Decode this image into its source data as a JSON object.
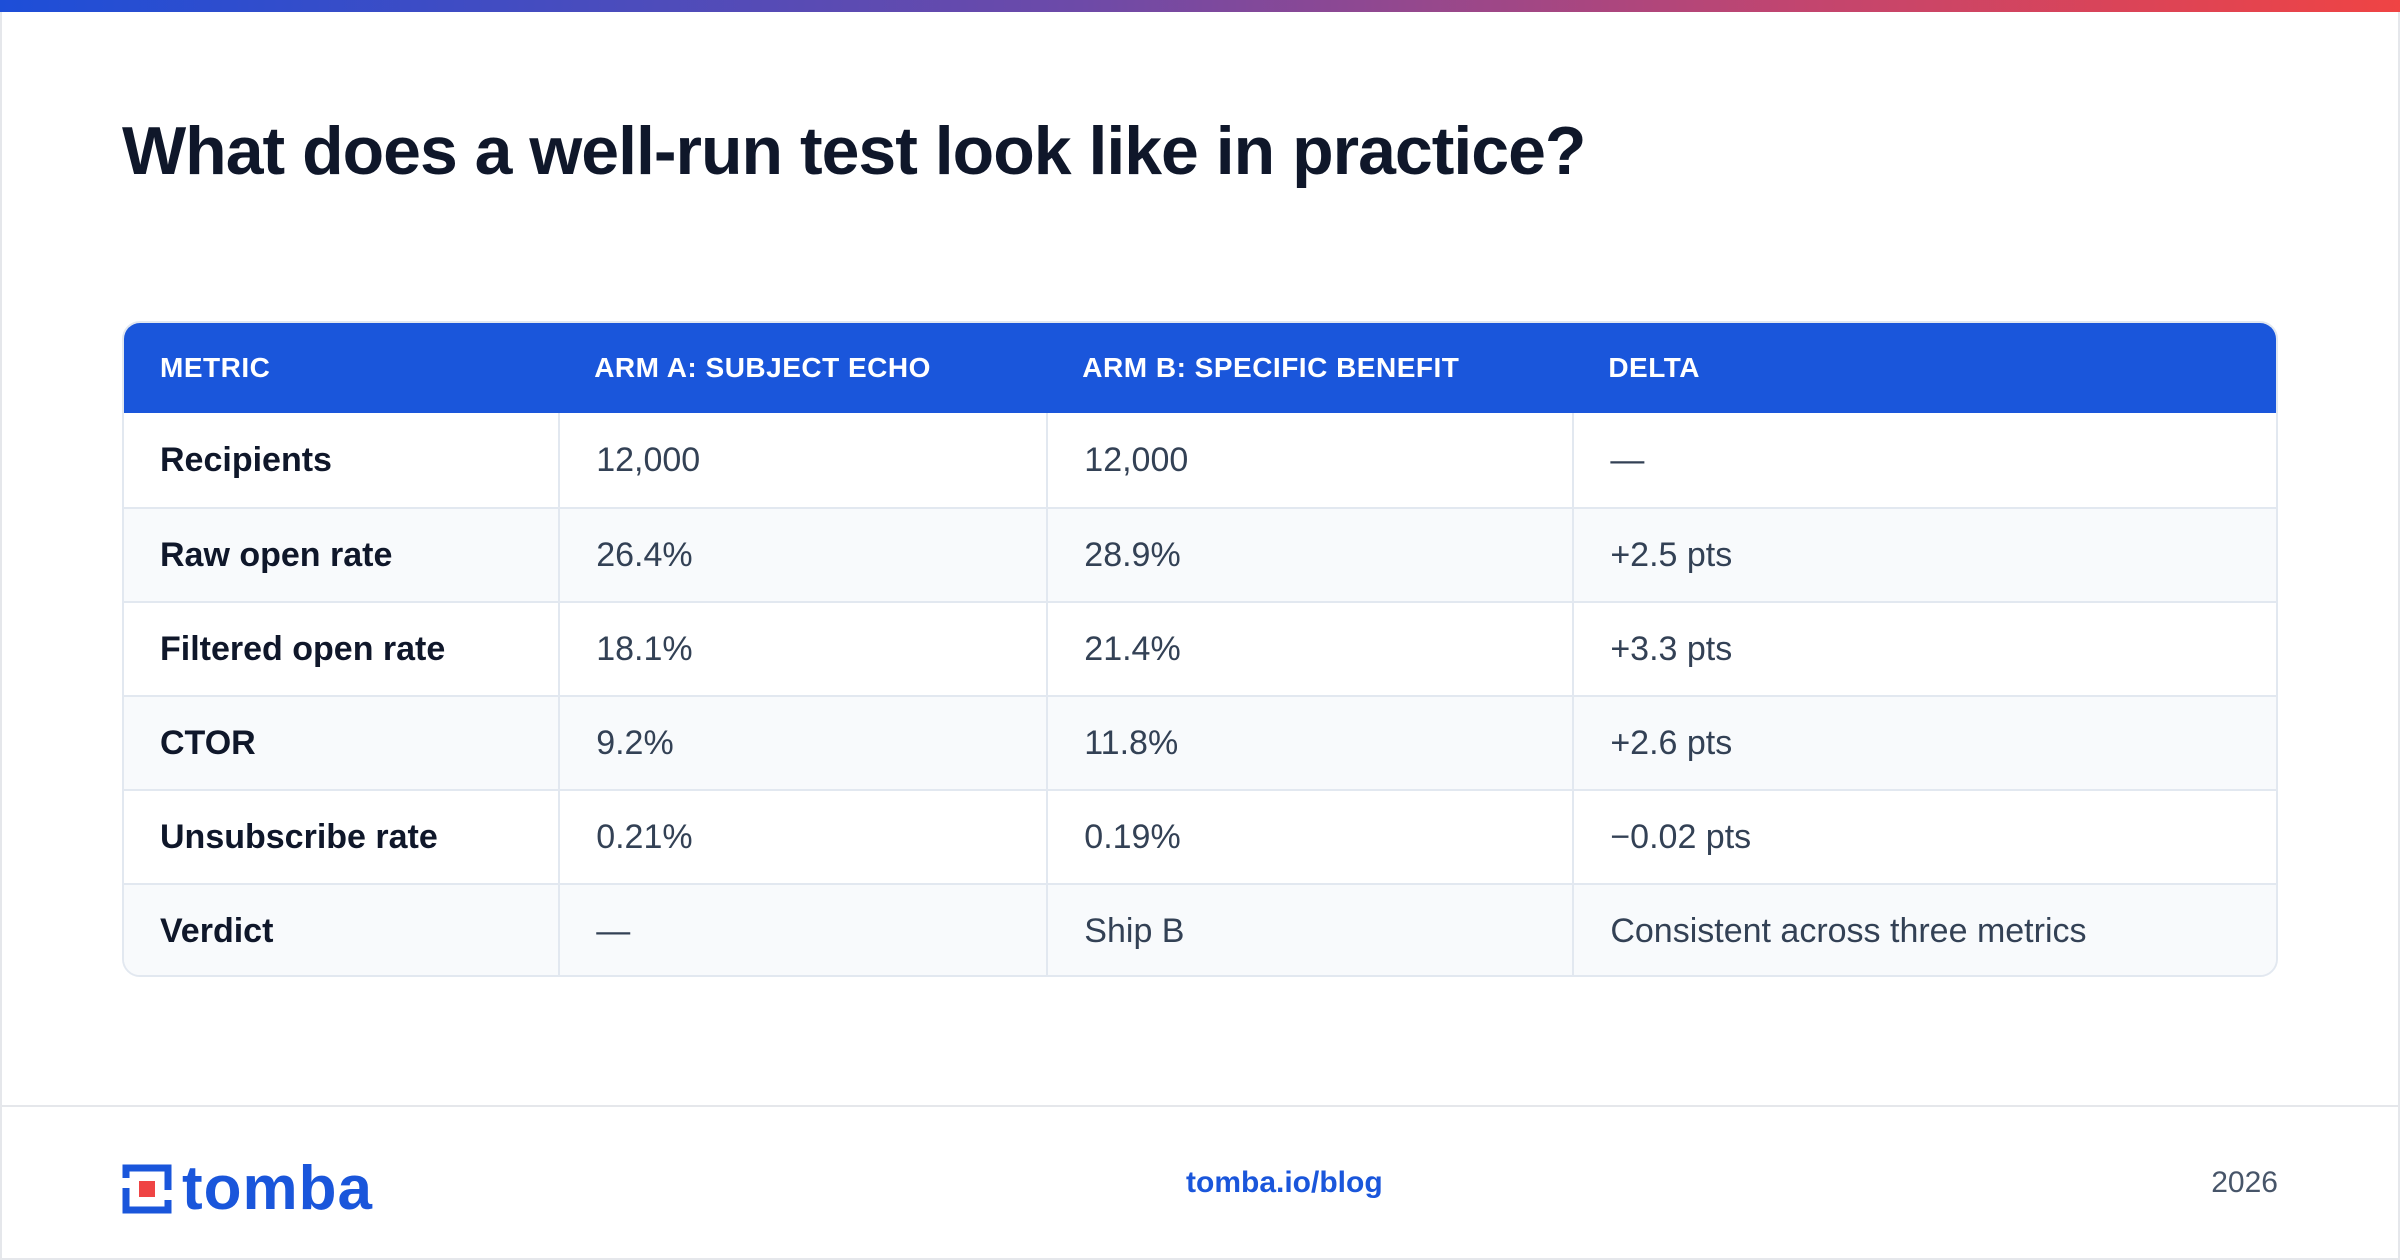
{
  "page": {
    "title": "What does a well-run test look like in practice?"
  },
  "table": {
    "headers": [
      "METRIC",
      "ARM A: SUBJECT ECHO",
      "ARM B: SPECIFIC BENEFIT",
      "DELTA"
    ],
    "rows": [
      [
        "Recipients",
        "12,000",
        "12,000",
        "—"
      ],
      [
        "Raw open rate",
        "26.4%",
        "28.9%",
        "+2.5 pts"
      ],
      [
        "Filtered open rate",
        "18.1%",
        "21.4%",
        "+3.3 pts"
      ],
      [
        "CTOR",
        "9.2%",
        "11.8%",
        "+2.6 pts"
      ],
      [
        "Unsubscribe rate",
        "0.21%",
        "0.19%",
        "−0.02 pts"
      ],
      [
        "Verdict",
        "—",
        "Ship B",
        "Consistent across three metrics"
      ]
    ]
  },
  "footer": {
    "logo_text": "tomba",
    "logo_icon": "tomba-logo-icon",
    "link": "tomba.io/blog",
    "year": "2026"
  },
  "colors": {
    "brand": "#1a56db",
    "accent_red": "#ef4444",
    "text": "#0f172a"
  }
}
